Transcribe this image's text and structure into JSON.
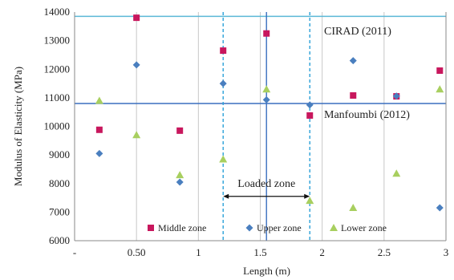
{
  "chart_data": {
    "type": "scatter",
    "xlabel": "Length (m)",
    "ylabel": "Modulus of Elasticity (MPa)",
    "xlim": [
      0,
      3
    ],
    "ylim": [
      6000,
      14000
    ],
    "x_ticks": [
      {
        "value": 0,
        "label": "-"
      },
      {
        "value": 0.5,
        "label": "0.50"
      },
      {
        "value": 1,
        "label": "1"
      },
      {
        "value": 1.5,
        "label": "1.5"
      },
      {
        "value": 2,
        "label": "2"
      },
      {
        "value": 2.5,
        "label": "2.5"
      },
      {
        "value": 3,
        "label": "3"
      }
    ],
    "y_ticks": [
      6000,
      7000,
      8000,
      9000,
      10000,
      11000,
      12000,
      13000,
      14000
    ],
    "grid": "vertical",
    "series": [
      {
        "name": "Middle zone",
        "marker": "square",
        "color": "#c8175d",
        "points": [
          {
            "x": 0.2,
            "y": 9880
          },
          {
            "x": 0.5,
            "y": 13800
          },
          {
            "x": 0.85,
            "y": 9850
          },
          {
            "x": 1.2,
            "y": 12650
          },
          {
            "x": 1.55,
            "y": 13250
          },
          {
            "x": 1.9,
            "y": 10380
          },
          {
            "x": 2.25,
            "y": 11080
          },
          {
            "x": 2.6,
            "y": 11050
          },
          {
            "x": 2.95,
            "y": 11950
          }
        ]
      },
      {
        "name": "Upper zone",
        "marker": "diamond",
        "color": "#4a7fbf",
        "points": [
          {
            "x": 0.2,
            "y": 9050
          },
          {
            "x": 0.5,
            "y": 12150
          },
          {
            "x": 0.85,
            "y": 8050
          },
          {
            "x": 1.2,
            "y": 11500
          },
          {
            "x": 1.55,
            "y": 10930
          },
          {
            "x": 1.9,
            "y": 10750
          },
          {
            "x": 2.25,
            "y": 12300
          },
          {
            "x": 2.6,
            "y": 11060
          },
          {
            "x": 2.95,
            "y": 7150
          }
        ]
      },
      {
        "name": "Lower zone",
        "marker": "triangle",
        "color": "#a8cf5f",
        "points": [
          {
            "x": 0.2,
            "y": 10900
          },
          {
            "x": 0.5,
            "y": 9700
          },
          {
            "x": 0.85,
            "y": 8300
          },
          {
            "x": 1.2,
            "y": 8850
          },
          {
            "x": 1.55,
            "y": 11300
          },
          {
            "x": 1.9,
            "y": 7400
          },
          {
            "x": 2.25,
            "y": 7150
          },
          {
            "x": 2.6,
            "y": 8350
          },
          {
            "x": 2.95,
            "y": 11300
          }
        ]
      }
    ],
    "reference_lines": [
      {
        "label": "CIRAD (2011)",
        "y": 13850,
        "color": "#5bb8d6"
      },
      {
        "label": "Manfoumbi (2012)",
        "y": 10800,
        "color": "#3a6fbf"
      }
    ],
    "loaded_zone": {
      "label": "Loaded zone",
      "x_start": 1.2,
      "x_end": 1.9,
      "center": 1.55,
      "arrow_y": 7550,
      "line_color": "#2aa0d8",
      "center_color": "#3a6fbf"
    },
    "legend": {
      "position": "bottom",
      "entries": [
        "Middle zone",
        "Upper zone",
        "Lower zone"
      ]
    }
  }
}
